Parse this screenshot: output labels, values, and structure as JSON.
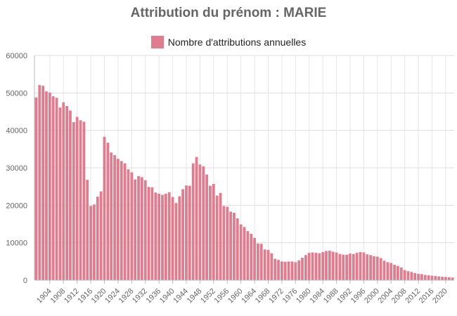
{
  "chart_data": {
    "type": "bar",
    "title": "Attribution du prénom : MARIE",
    "legend": [
      {
        "name": "Nombre d'attributions annuelles",
        "color": "#e07c8e"
      }
    ],
    "legend_position": "top",
    "grid": true,
    "ylim": [
      0,
      60000
    ],
    "y_ticks": [
      "0",
      "10000",
      "20000",
      "30000",
      "40000",
      "50000",
      "60000"
    ],
    "x_start": 1900,
    "x_end": 2022,
    "x_tick_labels": [
      "1904",
      "1908",
      "1912",
      "1916",
      "1920",
      "1924",
      "1928",
      "1932",
      "1936",
      "1940",
      "1944",
      "1948",
      "1952",
      "1956",
      "1960",
      "1964",
      "1968",
      "1972",
      "1976",
      "1980",
      "1984",
      "1988",
      "1992",
      "1996",
      "2000",
      "2004",
      "2008",
      "2012",
      "2016",
      "2020"
    ],
    "series": [
      {
        "name": "Nombre d'attributions annuelles",
        "color": "#e07c8e",
        "values": [
          48800,
          52100,
          51900,
          50400,
          50100,
          49100,
          48700,
          46100,
          47500,
          46500,
          45300,
          42200,
          43600,
          42700,
          42300,
          26800,
          19800,
          20200,
          22300,
          23700,
          38300,
          36700,
          34100,
          33400,
          32400,
          31800,
          31200,
          29600,
          28800,
          26900,
          27800,
          27500,
          26700,
          24900,
          24800,
          23400,
          23100,
          22800,
          23100,
          23500,
          22200,
          20600,
          22400,
          24300,
          25300,
          25200,
          31200,
          32900,
          30900,
          30400,
          28200,
          25200,
          25700,
          22600,
          23300,
          19800,
          19600,
          18300,
          18000,
          16500,
          14900,
          14200,
          13100,
          12400,
          11300,
          9800,
          9700,
          8200,
          8100,
          7200,
          5700,
          5400,
          5000,
          4900,
          5000,
          5000,
          4800,
          5300,
          6000,
          6700,
          7300,
          7400,
          7300,
          7200,
          7500,
          7800,
          7900,
          7600,
          7400,
          7000,
          6800,
          6800,
          7100,
          7000,
          7300,
          7500,
          7400,
          6900,
          6700,
          6400,
          6300,
          5900,
          5200,
          4800,
          4600,
          4100,
          3800,
          3400,
          2700,
          2400,
          2200,
          1900,
          1700,
          1600,
          1400,
          1300,
          1200,
          1100,
          1000,
          900,
          850,
          800,
          700
        ]
      }
    ]
  }
}
